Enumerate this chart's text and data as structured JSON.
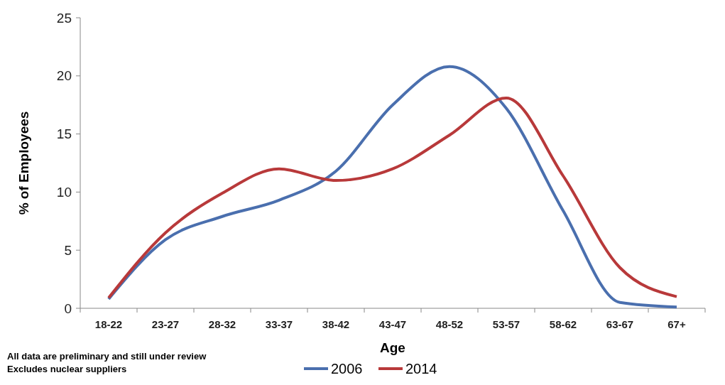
{
  "chart_data": {
    "type": "line",
    "xlabel": "Age",
    "ylabel": "% of Employees",
    "categories": [
      "18-22",
      "23-27",
      "28-32",
      "33-37",
      "38-42",
      "43-47",
      "48-52",
      "53-57",
      "58-62",
      "63-67",
      "67+"
    ],
    "series": [
      {
        "name": "2006",
        "color": "#4a6fae",
        "values": [
          0.8,
          5.9,
          7.9,
          9.3,
          11.8,
          17.5,
          20.8,
          17.2,
          8.4,
          0.5,
          0.1
        ]
      },
      {
        "name": "2014",
        "color": "#b8393a",
        "values": [
          0.9,
          6.5,
          9.9,
          12,
          11,
          12,
          14.9,
          18.1,
          11.4,
          3.5,
          1.0
        ]
      }
    ],
    "ylim": [
      0,
      25
    ],
    "yticks": [
      0,
      5,
      10,
      15,
      20,
      25
    ],
    "grid": false,
    "legend": "bottom",
    "marker": "none",
    "line_style": "solid",
    "annotations": [
      "All data are preliminary  and still under review",
      "Excludes nuclear suppliers"
    ]
  }
}
